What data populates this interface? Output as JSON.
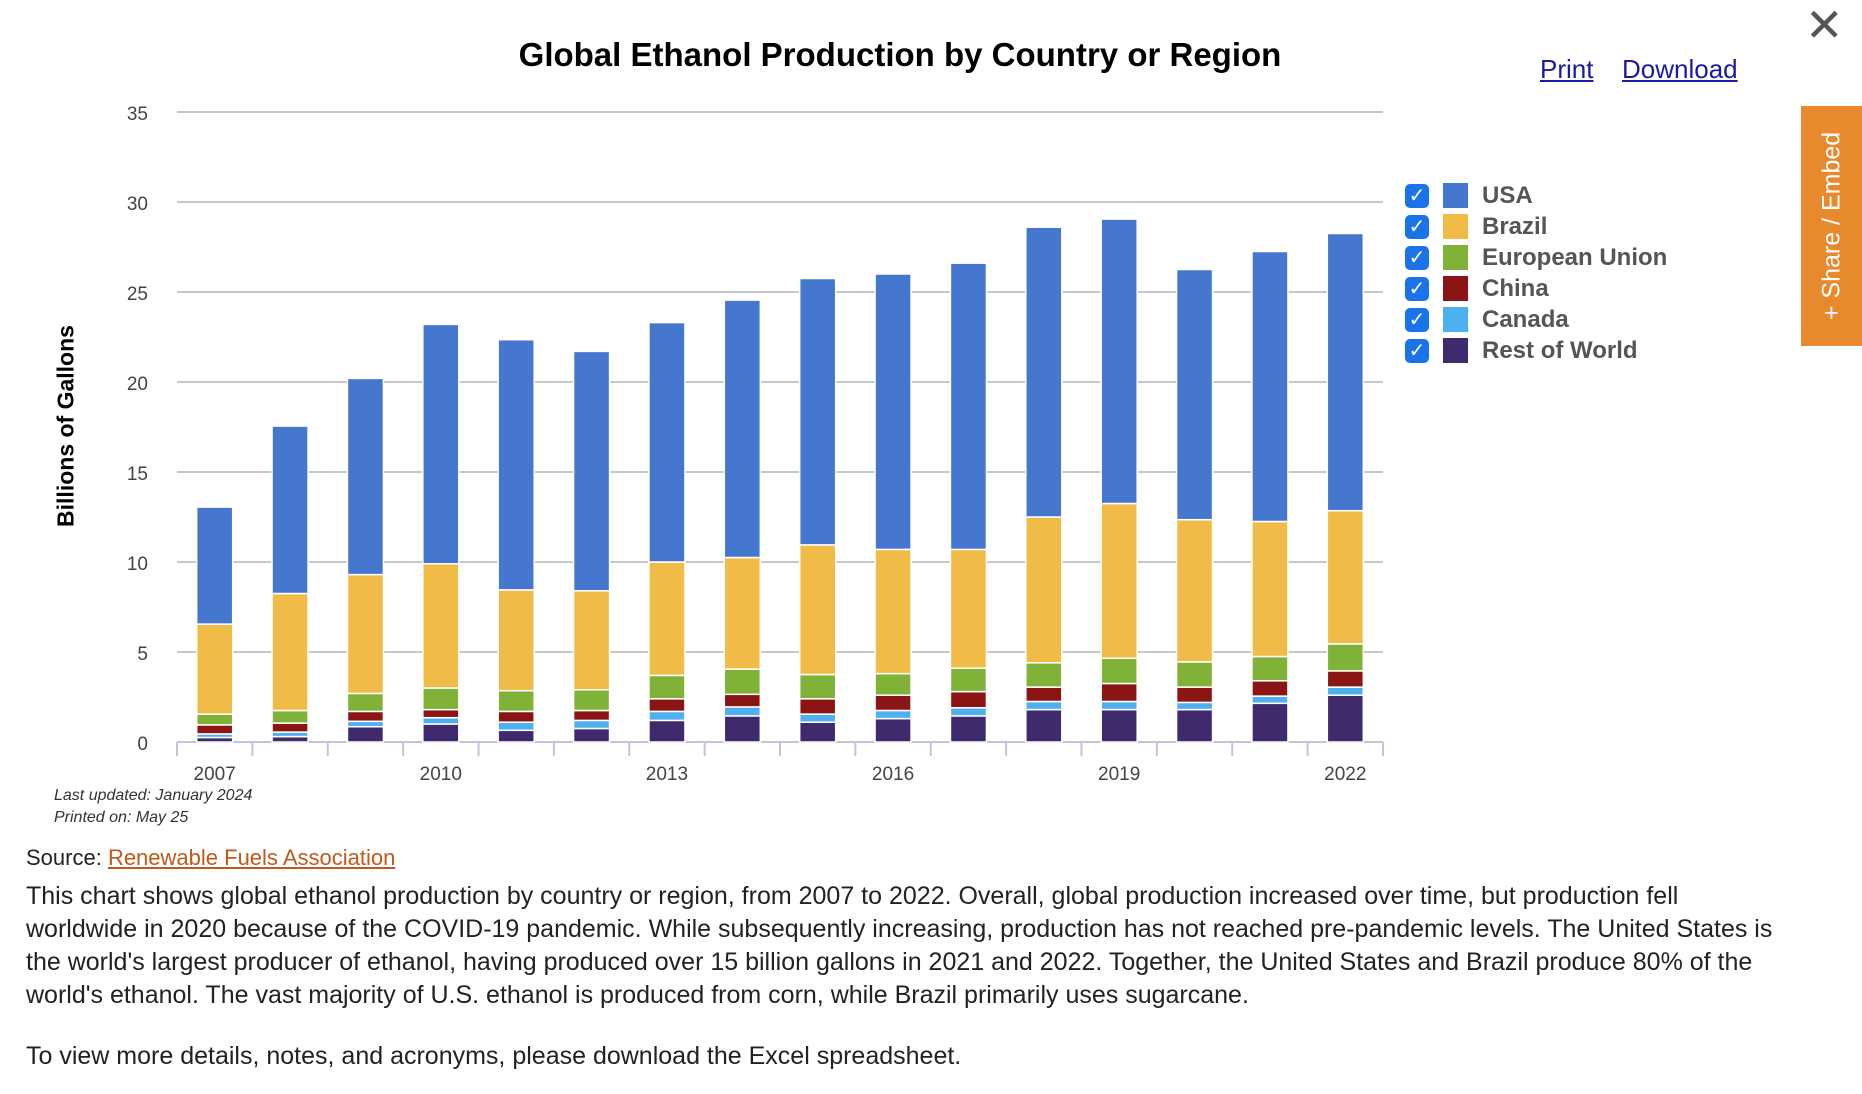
{
  "close_symbol": "✕",
  "links": {
    "print": "Print",
    "download": "Download"
  },
  "share_label": "+  Share / Embed",
  "chart_data": {
    "type": "bar",
    "stacked": true,
    "title": "Global Ethanol Production by Country or Region",
    "ylabel": "Billions of Gallons",
    "xlabel": "",
    "ylim": [
      0,
      35
    ],
    "yticks": [
      0,
      5,
      10,
      15,
      20,
      25,
      30,
      35
    ],
    "categories": [
      "2007",
      "2008",
      "2009",
      "2010",
      "2011",
      "2012",
      "2013",
      "2014",
      "2015",
      "2016",
      "2017",
      "2018",
      "2019",
      "2020",
      "2021",
      "2022"
    ],
    "xtick_labels": [
      "2007",
      "",
      "",
      "2010",
      "",
      "",
      "2013",
      "",
      "",
      "2016",
      "",
      "",
      "2019",
      "",
      "",
      "2022"
    ],
    "grid": true,
    "legend_position": "right",
    "series": [
      {
        "name": "Rest of World",
        "color": "#3f2a6e",
        "values": [
          0.25,
          0.3,
          0.85,
          1.0,
          0.65,
          0.75,
          1.2,
          1.45,
          1.1,
          1.3,
          1.45,
          1.8,
          1.8,
          1.8,
          2.15,
          2.6
        ]
      },
      {
        "name": "Canada",
        "color": "#4fb0f0",
        "values": [
          0.2,
          0.25,
          0.3,
          0.35,
          0.45,
          0.45,
          0.5,
          0.5,
          0.45,
          0.45,
          0.45,
          0.45,
          0.45,
          0.4,
          0.4,
          0.45
        ]
      },
      {
        "name": "China",
        "color": "#8b1515",
        "values": [
          0.5,
          0.5,
          0.55,
          0.45,
          0.6,
          0.55,
          0.7,
          0.7,
          0.85,
          0.85,
          0.9,
          0.8,
          1.0,
          0.85,
          0.85,
          0.9
        ]
      },
      {
        "name": "European Union",
        "color": "#7fb236",
        "values": [
          0.6,
          0.7,
          1.0,
          1.2,
          1.15,
          1.15,
          1.3,
          1.4,
          1.35,
          1.2,
          1.3,
          1.35,
          1.4,
          1.4,
          1.35,
          1.5
        ]
      },
      {
        "name": "Brazil",
        "color": "#f0bb47",
        "values": [
          5.0,
          6.5,
          6.6,
          6.9,
          5.6,
          5.5,
          6.3,
          6.2,
          7.2,
          6.9,
          6.6,
          8.1,
          8.6,
          7.9,
          7.5,
          7.4
        ]
      },
      {
        "name": "USA",
        "color": "#4577cf",
        "values": [
          6.5,
          9.3,
          10.9,
          13.3,
          13.9,
          13.3,
          13.3,
          14.3,
          14.8,
          15.3,
          15.9,
          16.1,
          15.8,
          13.9,
          15.0,
          15.4
        ]
      }
    ],
    "legend_order": [
      "USA",
      "Brazil",
      "European Union",
      "China",
      "Canada",
      "Rest of World"
    ]
  },
  "meta": {
    "updated": "Last updated: January 2024",
    "printed": "Printed on: May 25"
  },
  "source": {
    "label": "Source: ",
    "link": "Renewable Fuels Association"
  },
  "description": "This chart shows global ethanol production by country or region, from 2007 to 2022. Overall, global production increased over time, but production fell worldwide in 2020 because of the COVID-19 pandemic. While subsequently increasing, production has not reached pre-pandemic levels. The United States is the world's largest producer of ethanol, having produced over 15 billion gallons in 2021 and 2022. Together, the United States and Brazil produce 80% of the world's ethanol. The vast majority of U.S. ethanol is produced from corn, while Brazil primarily uses sugarcane.",
  "note": "To view more details, notes, and acronyms, please download the Excel spreadsheet."
}
